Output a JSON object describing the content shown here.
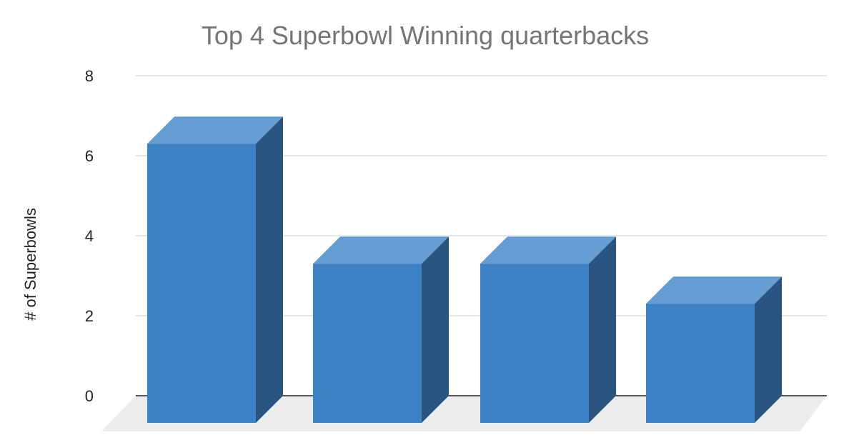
{
  "chart_data": {
    "type": "bar",
    "title": "Top 4 Superbowl Winning quarterbacks",
    "xlabel": "",
    "ylabel": "# of Superbowls",
    "categories": [
      "",
      "",
      "",
      ""
    ],
    "series": [
      {
        "values": [
          6.3,
          3.3,
          3.3,
          2.3
        ]
      }
    ],
    "ylim": [
      0,
      8
    ],
    "yticks": [
      "0",
      "2",
      "4",
      "6",
      "8"
    ],
    "grid": true,
    "legend": "none",
    "style": "3d",
    "colors": {
      "bar_front": "#3d82c5",
      "bar_top": "#639dd3",
      "bar_side": "#29547f",
      "floor": "#ececec",
      "gridline": "#cccccc",
      "baseline": "#222222",
      "title": "#757575",
      "text": "#222222"
    }
  }
}
